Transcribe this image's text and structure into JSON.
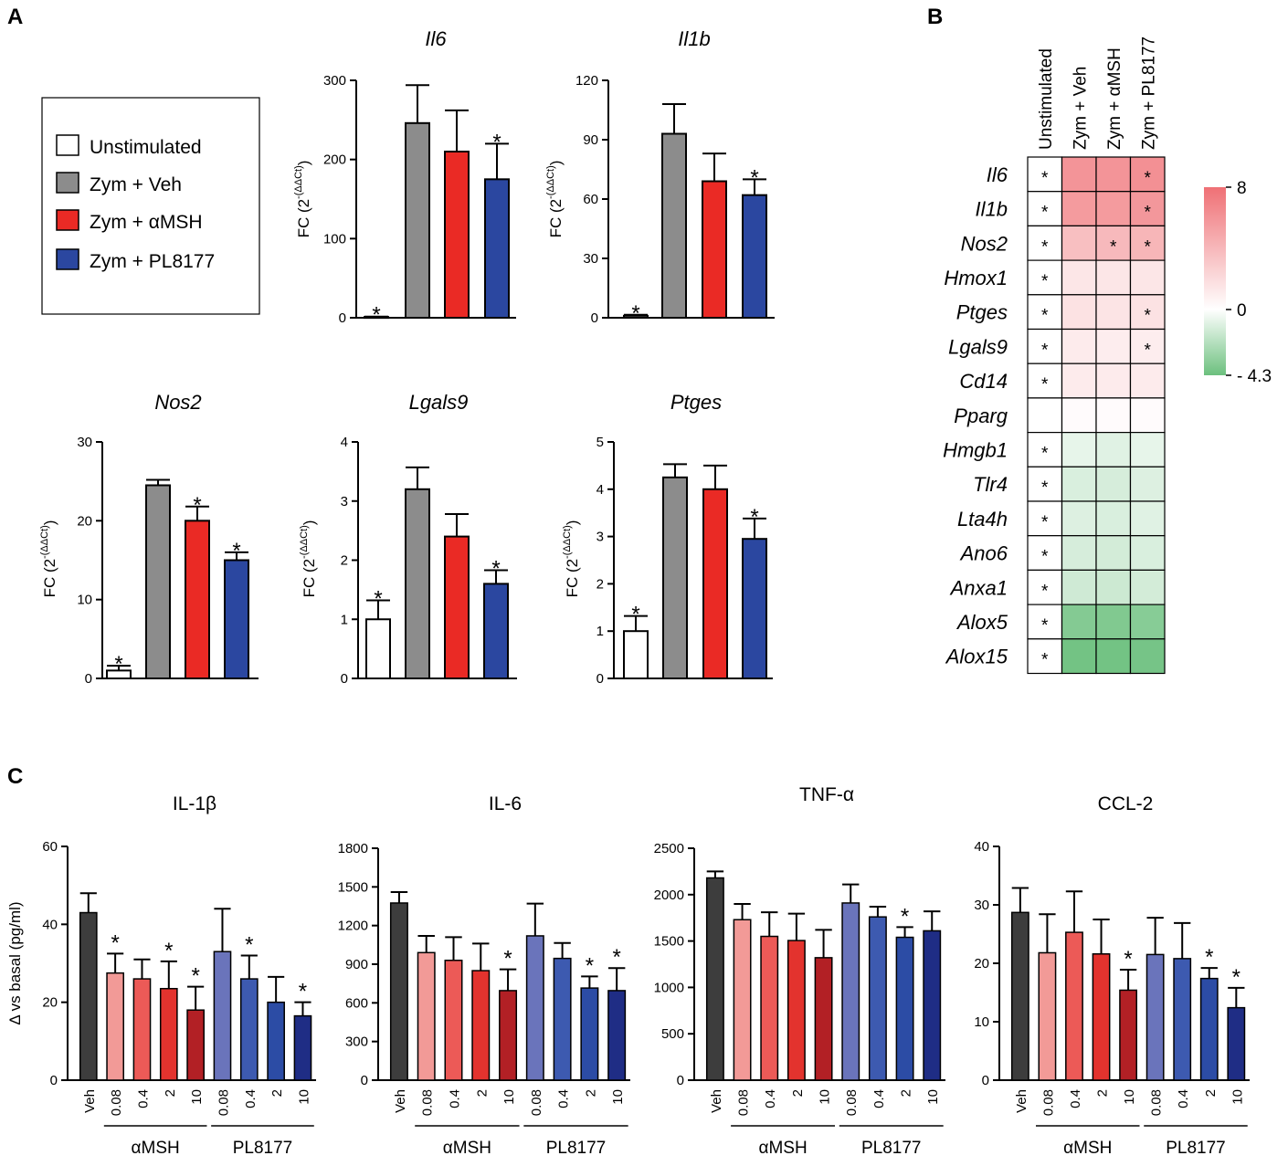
{
  "panels": {
    "A": "A",
    "B": "B",
    "C": "C"
  },
  "colors": {
    "unstim": "#ffffff",
    "veh_gray": "#8c8c8c",
    "amsh_red": "#ea2a25",
    "pl_blue": "#2b47a0",
    "veh_dark": "#3d3d3d",
    "amsh_shades": [
      "#f29a97",
      "#ec5a57",
      "#e3332e",
      "#b22025"
    ],
    "pl_shades": [
      "#6a74bb",
      "#3d5ab0",
      "#2c4ca5",
      "#1f2d85"
    ],
    "heat_pos": "#ef7075",
    "heat_mid": "#ffffff",
    "heat_neg": "#6cc07e"
  },
  "legend": {
    "items": [
      {
        "label": "Unstimulated",
        "color": "#ffffff"
      },
      {
        "label": "Zym + Veh",
        "color": "#8c8c8c"
      },
      {
        "label": "Zym + αMSH",
        "color": "#ea2a25"
      },
      {
        "label": "Zym + PL8177",
        "color": "#2b47a0"
      }
    ]
  },
  "chart_data": [
    {
      "id": "A-Il6",
      "type": "bar",
      "title": "Il6",
      "ylabel": "FC (2-(ΔΔCt))",
      "ylim": [
        0,
        300
      ],
      "yticks": [
        0,
        100,
        200,
        300
      ],
      "categories": [
        "Unstimulated",
        "Zym + Veh",
        "Zym + αMSH",
        "Zym + PL8177"
      ],
      "values": [
        1,
        246,
        210,
        175
      ],
      "errors": [
        0.5,
        48,
        52,
        45
      ],
      "significant": [
        true,
        false,
        false,
        true
      ]
    },
    {
      "id": "A-Il1b",
      "type": "bar",
      "title": "Il1b",
      "ylabel": "FC (2-(ΔΔCt))",
      "ylim": [
        0,
        120
      ],
      "yticks": [
        0,
        30,
        60,
        90,
        120
      ],
      "categories": [
        "Unstimulated",
        "Zym + Veh",
        "Zym + αMSH",
        "Zym + PL8177"
      ],
      "values": [
        1,
        93,
        69,
        62
      ],
      "errors": [
        0.5,
        15,
        14,
        8
      ],
      "significant": [
        true,
        false,
        false,
        true
      ]
    },
    {
      "id": "A-Nos2",
      "type": "bar",
      "title": "Nos2",
      "ylabel": "FC (2-(ΔΔCt))",
      "ylim": [
        0,
        30
      ],
      "yticks": [
        0,
        10,
        20,
        30
      ],
      "categories": [
        "Unstimulated",
        "Zym + Veh",
        "Zym + αMSH",
        "Zym + PL8177"
      ],
      "values": [
        1,
        24.5,
        20,
        15
      ],
      "errors": [
        0.6,
        0.7,
        1.8,
        1
      ],
      "significant": [
        true,
        false,
        true,
        true
      ]
    },
    {
      "id": "A-Lgals9",
      "type": "bar",
      "title": "Lgals9",
      "ylabel": "FC (2-(ΔΔCt))",
      "ylim": [
        0,
        4
      ],
      "yticks": [
        0,
        1,
        2,
        3,
        4
      ],
      "categories": [
        "Unstimulated",
        "Zym + Veh",
        "Zym + αMSH",
        "Zym + PL8177"
      ],
      "values": [
        1,
        3.2,
        2.4,
        1.6
      ],
      "errors": [
        0.32,
        0.37,
        0.38,
        0.23
      ],
      "significant": [
        true,
        false,
        false,
        true
      ]
    },
    {
      "id": "A-Ptges",
      "type": "bar",
      "title": "Ptges",
      "ylabel": "FC (2-(ΔΔCt))",
      "ylim": [
        0,
        5
      ],
      "yticks": [
        0,
        1,
        2,
        3,
        4,
        5
      ],
      "categories": [
        "Unstimulated",
        "Zym + Veh",
        "Zym + αMSH",
        "Zym + PL8177"
      ],
      "values": [
        1,
        4.25,
        4,
        2.95
      ],
      "errors": [
        0.32,
        0.28,
        0.5,
        0.43
      ],
      "significant": [
        true,
        false,
        false,
        true
      ]
    },
    {
      "id": "B-heatmap",
      "type": "heatmap",
      "columns": [
        "Unstimulated",
        "Zym + Veh",
        "Zym + αMSH",
        "Zym + PL8177"
      ],
      "rows": [
        "Il6",
        "Il1b",
        "Nos2",
        "Hmox1",
        "Ptges",
        "Lgals9",
        "Cd14",
        "Pparg",
        "Hmgb1",
        "Tlr4",
        "Lta4h",
        "Ano6",
        "Anxa1",
        "Alox5",
        "Alox15"
      ],
      "values": [
        [
          0,
          6.0,
          6.0,
          6.2
        ],
        [
          0,
          5.6,
          5.6,
          5.8
        ],
        [
          0,
          3.6,
          3.9,
          4.1
        ],
        [
          0,
          1.4,
          1.4,
          1.4
        ],
        [
          0,
          1.6,
          1.5,
          1.6
        ],
        [
          0,
          1.1,
          1.0,
          1.0
        ],
        [
          0,
          1.1,
          1.1,
          1.1
        ],
        [
          0,
          0.2,
          0.2,
          0.2
        ],
        [
          0,
          -0.7,
          -0.9,
          -0.7
        ],
        [
          0,
          -1.1,
          -1.2,
          -1.0
        ],
        [
          0,
          -1.0,
          -1.1,
          -0.9
        ],
        [
          0,
          -1.2,
          -1.3,
          -1.1
        ],
        [
          0,
          -1.4,
          -1.5,
          -1.3
        ],
        [
          0,
          -3.6,
          -3.7,
          -3.5
        ],
        [
          0,
          -4.1,
          -4.1,
          -4.0
        ]
      ],
      "significant": [
        [
          true,
          false,
          false,
          true
        ],
        [
          true,
          false,
          false,
          true
        ],
        [
          true,
          false,
          true,
          true
        ],
        [
          true,
          false,
          false,
          false
        ],
        [
          true,
          false,
          false,
          true
        ],
        [
          true,
          false,
          false,
          true
        ],
        [
          true,
          false,
          false,
          false
        ],
        [
          false,
          false,
          false,
          false
        ],
        [
          true,
          false,
          false,
          false
        ],
        [
          true,
          false,
          false,
          false
        ],
        [
          true,
          false,
          false,
          false
        ],
        [
          true,
          false,
          false,
          false
        ],
        [
          true,
          false,
          false,
          false
        ],
        [
          true,
          false,
          false,
          false
        ],
        [
          true,
          false,
          false,
          false
        ]
      ],
      "colorbar": {
        "max": 8,
        "mid": 0,
        "min": -4.3,
        "labels": [
          "8",
          "0",
          "- 4.3"
        ]
      }
    },
    {
      "id": "C-IL1b",
      "type": "bar",
      "title": "IL-1β",
      "ylabel": "Δ vs basal (pg/ml)",
      "ylim": [
        0,
        60
      ],
      "yticks": [
        0,
        20,
        40,
        60
      ],
      "categories": [
        "Veh",
        "0.08",
        "0.4",
        "2",
        "10",
        "0.08",
        "0.4",
        "2",
        "10"
      ],
      "groups": [
        {
          "label": "αMSH",
          "from": 1,
          "to": 4
        },
        {
          "label": "PL8177",
          "from": 5,
          "to": 8
        }
      ],
      "values": [
        43,
        27.5,
        26,
        23.5,
        18,
        33,
        26,
        20,
        16.5
      ],
      "errors": [
        5,
        5,
        5,
        7,
        6,
        11,
        6,
        6.5,
        3.5
      ],
      "significant": [
        false,
        true,
        false,
        true,
        true,
        false,
        true,
        false,
        true
      ]
    },
    {
      "id": "C-IL6",
      "type": "bar",
      "title": "IL-6",
      "ylabel": "",
      "ylim": [
        0,
        1800
      ],
      "yticks": [
        0,
        300,
        600,
        900,
        1200,
        1500,
        1800
      ],
      "categories": [
        "Veh",
        "0.08",
        "0.4",
        "2",
        "10",
        "0.08",
        "0.4",
        "2",
        "10"
      ],
      "groups": [
        {
          "label": "αMSH",
          "from": 1,
          "to": 4
        },
        {
          "label": "PL8177",
          "from": 5,
          "to": 8
        }
      ],
      "values": [
        1375,
        990,
        930,
        850,
        695,
        1120,
        945,
        715,
        695
      ],
      "errors": [
        85,
        130,
        180,
        210,
        165,
        250,
        120,
        90,
        175
      ],
      "significant": [
        false,
        false,
        false,
        false,
        true,
        false,
        false,
        true,
        true
      ]
    },
    {
      "id": "C-TNFa",
      "type": "bar",
      "title": "TNF-α",
      "ylabel": "",
      "ylim": [
        0,
        2500
      ],
      "yticks": [
        0,
        500,
        1000,
        1500,
        2000,
        2500
      ],
      "categories": [
        "Veh",
        "0.08",
        "0.4",
        "2",
        "10",
        "0.08",
        "0.4",
        "2",
        "10"
      ],
      "groups": [
        {
          "label": "αMSH",
          "from": 1,
          "to": 4
        },
        {
          "label": "PL8177",
          "from": 5,
          "to": 8
        }
      ],
      "values": [
        2180,
        1730,
        1550,
        1505,
        1320,
        1910,
        1760,
        1540,
        1610
      ],
      "errors": [
        70,
        170,
        260,
        290,
        300,
        200,
        110,
        110,
        210
      ],
      "significant": [
        false,
        false,
        false,
        false,
        false,
        false,
        false,
        true,
        false
      ]
    },
    {
      "id": "C-CCL2",
      "type": "bar",
      "title": "CCL-2",
      "ylabel": "",
      "ylim": [
        0,
        40
      ],
      "yticks": [
        0,
        10,
        20,
        30,
        40
      ],
      "categories": [
        "Veh",
        "0.08",
        "0.4",
        "2",
        "10",
        "0.08",
        "0.4",
        "2",
        "10"
      ],
      "groups": [
        {
          "label": "αMSH",
          "from": 1,
          "to": 4
        },
        {
          "label": "PL8177",
          "from": 5,
          "to": 8
        }
      ],
      "values": [
        28.7,
        21.8,
        25.3,
        21.6,
        15.4,
        21.5,
        20.8,
        17.4,
        12.4
      ],
      "errors": [
        4.2,
        6.6,
        7,
        5.9,
        3.5,
        6.3,
        6.1,
        1.8,
        3.4
      ],
      "significant": [
        false,
        false,
        false,
        false,
        true,
        false,
        false,
        true,
        true
      ]
    }
  ]
}
